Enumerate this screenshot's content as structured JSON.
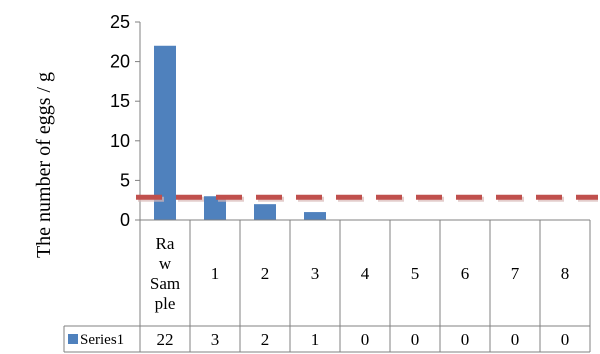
{
  "chart_data": {
    "type": "bar",
    "ylabel": "The number of eggs / g",
    "ylim": [
      0,
      25
    ],
    "yticks": [
      0,
      5,
      10,
      15,
      20,
      25
    ],
    "categories": [
      [
        "Ra",
        "w",
        "Sam",
        "ple"
      ],
      [
        "1"
      ],
      [
        "2"
      ],
      [
        "3"
      ],
      [
        "4"
      ],
      [
        "5"
      ],
      [
        "6"
      ],
      [
        "7"
      ],
      [
        "8"
      ]
    ],
    "series": [
      {
        "name": "Series1",
        "values": [
          22,
          3,
          2,
          1,
          0,
          0,
          0,
          0,
          0
        ],
        "color": "#4f81bd"
      }
    ],
    "threshold": {
      "value": 3,
      "color": "#c0504d",
      "style": "dashed"
    },
    "data_table": true,
    "grid": false
  }
}
